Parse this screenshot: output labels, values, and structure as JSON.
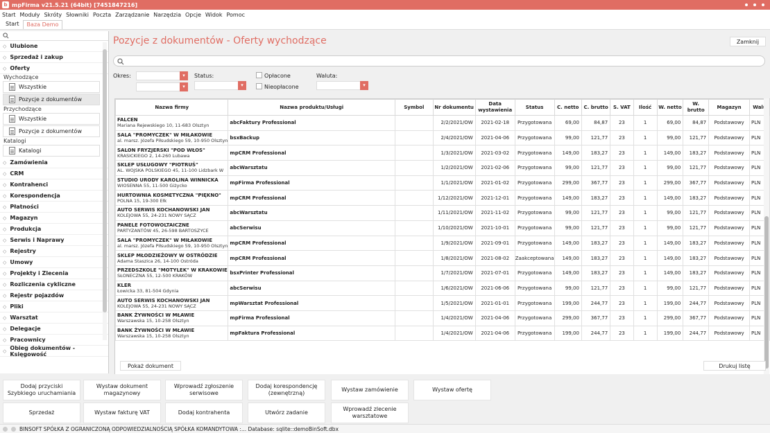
{
  "window": {
    "title": "mpFirma v21.5.21 (64bit) [7451847216]"
  },
  "menu": [
    "Start",
    "Moduły",
    "Skróty",
    "Słowniki",
    "Poczta",
    "Zarządzanie",
    "Narzędzia",
    "Opcje",
    "Widok",
    "Pomoc"
  ],
  "tabs": [
    "Start",
    "Baza Demo"
  ],
  "sidebar": {
    "groups_top": [
      "Ulubione",
      "Sprzedaż i zakup",
      "Oferty"
    ],
    "cat_wychodzace": "Wychodzące",
    "wych_items": [
      "Wszystkie",
      "Pozycje z dokumentów"
    ],
    "cat_przychodzace": "Przychodzące",
    "przych_items": [
      "Wszystkie",
      "Pozycje z dokumentów"
    ],
    "cat_katalogi": "Katalogi",
    "katalogi_items": [
      "Katalogi"
    ],
    "groups_bottom": [
      "Zamówienia",
      "CRM",
      "Kontrahenci",
      "Korespondencja",
      "Płatności",
      "Magazyn",
      "Produkcja",
      "Serwis i Naprawy",
      "Rejestry",
      "Umowy",
      "Projekty i Zlecenia",
      "Rozliczenia cykliczne",
      "Rejestr pojazdów",
      "Pliki",
      "Warsztat",
      "Delegacje",
      "Pracownicy",
      "Obieg dokumentów - Księgowość"
    ]
  },
  "main": {
    "title": "Pozycje z dokumentów - Oferty wychodzące",
    "close_label": "Zamknij",
    "filters": {
      "okres_label": "Okres:",
      "status_label": "Status:",
      "paid_label": "Opłacone",
      "unpaid_label": "Nieopłacone",
      "currency_label": "Waluta:"
    },
    "show_doc_label": "Pokaż dokument",
    "print_label": "Drukuj listę"
  },
  "grid": {
    "columns": [
      "Nazwa firmy",
      "Nazwa produktu/Usługi",
      "Symbol",
      "Nr dokumentu",
      "Data wystawienia",
      "Status",
      "C. netto",
      "C. brutto",
      "S. VAT",
      "Ilość",
      "W. netto",
      "W. brutto",
      "Magazyn",
      "Walu"
    ],
    "rows": [
      {
        "firm": "FALCEN",
        "addr": "Mariana Rejewskiego 10, 11-683 Olsztyn",
        "product": "abcFaktury Professional",
        "symbol": "",
        "doc": "2/2/2021/OW",
        "date": "2021-02-18",
        "status": "Przygotowana",
        "net": "69,00",
        "gross": "84,87",
        "vat": "23",
        "qty": "1",
        "wnet": "69,00",
        "wgross": "84,87",
        "warehouse": "Podstawowy",
        "cur": "PLN"
      },
      {
        "firm": "SALA \"PROMYCZEK\" W MIŁAKOWIE",
        "addr": "al. marsz. Józefa Piłsudskiego 59, 10-950 Olsztyn",
        "product": "bsxBackup",
        "symbol": "",
        "doc": "2/4/2021/OW",
        "date": "2021-04-06",
        "status": "Przygotowana",
        "net": "99,00",
        "gross": "121,77",
        "vat": "23",
        "qty": "1",
        "wnet": "99,00",
        "wgross": "121,77",
        "warehouse": "Podstawowy",
        "cur": "PLN"
      },
      {
        "firm": "SALON FRYZJERSKI \"POD WŁOS\"",
        "addr": "KRASICKIEGO 2, 14-260 Lubawa",
        "product": "mpCRM Professional",
        "symbol": "",
        "doc": "1/3/2021/OW",
        "date": "2021-03-02",
        "status": "Przygotowana",
        "net": "149,00",
        "gross": "183,27",
        "vat": "23",
        "qty": "1",
        "wnet": "149,00",
        "wgross": "183,27",
        "warehouse": "Podstawowy",
        "cur": "PLN"
      },
      {
        "firm": "SKLEP USŁUGOWY \"PIOTRUŚ\"",
        "addr": "AL. WOJSKA POLSKIEGO 45, 11-100 Lidzbark W",
        "product": "abcWarsztatu",
        "symbol": "",
        "doc": "1/2/2021/OW",
        "date": "2021-02-06",
        "status": "Przygotowana",
        "net": "99,00",
        "gross": "121,77",
        "vat": "23",
        "qty": "1",
        "wnet": "99,00",
        "wgross": "121,77",
        "warehouse": "Podstawowy",
        "cur": "PLN"
      },
      {
        "firm": "STUDIO URODY KAROLINA WINNICKA",
        "addr": "WIOSENNA 55, 11-500 Giżycko",
        "product": "mpFirma Professional",
        "symbol": "",
        "doc": "1/1/2021/OW",
        "date": "2021-01-02",
        "status": "Przygotowana",
        "net": "299,00",
        "gross": "367,77",
        "vat": "23",
        "qty": "1",
        "wnet": "299,00",
        "wgross": "367,77",
        "warehouse": "Podstawowy",
        "cur": "PLN"
      },
      {
        "firm": "HURTOWNIA KOSMETYCZNA \"PIĘKNO\"",
        "addr": "POLNA 15, 19-300 Ełk",
        "product": "mpCRM Professional",
        "symbol": "",
        "doc": "1/12/2021/OW",
        "date": "2021-12-01",
        "status": "Przygotowana",
        "net": "149,00",
        "gross": "183,27",
        "vat": "23",
        "qty": "1",
        "wnet": "149,00",
        "wgross": "183,27",
        "warehouse": "Podstawowy",
        "cur": "PLN"
      },
      {
        "firm": "AUTO SERWIS KOCHANOWSKI JAN",
        "addr": "KOLEJOWA 55, 24-231 NOWY SĄCZ",
        "product": "abcWarsztatu",
        "symbol": "",
        "doc": "1/11/2021/OW",
        "date": "2021-11-02",
        "status": "Przygotowana",
        "net": "99,00",
        "gross": "121,77",
        "vat": "23",
        "qty": "1",
        "wnet": "99,00",
        "wgross": "121,77",
        "warehouse": "Podstawowy",
        "cur": "PLN"
      },
      {
        "firm": "PANELE FOTOWOLTAICZNE",
        "addr": "PARTYZANTÓW 45, 26-598 BARTOSZYCE",
        "product": "abcSerwisu",
        "symbol": "",
        "doc": "1/10/2021/OW",
        "date": "2021-10-01",
        "status": "Przygotowana",
        "net": "99,00",
        "gross": "121,77",
        "vat": "23",
        "qty": "1",
        "wnet": "99,00",
        "wgross": "121,77",
        "warehouse": "Podstawowy",
        "cur": "PLN"
      },
      {
        "firm": "SALA \"PROMYCZEK\" W MIŁAKOWIE",
        "addr": "al. marsz. Józefa Piłsudskiego 59, 10-950 Olsztyn",
        "product": "mpCRM Professional",
        "symbol": "",
        "doc": "1/9/2021/OW",
        "date": "2021-09-01",
        "status": "Przygotowana",
        "net": "149,00",
        "gross": "183,27",
        "vat": "23",
        "qty": "1",
        "wnet": "149,00",
        "wgross": "183,27",
        "warehouse": "Podstawowy",
        "cur": "PLN"
      },
      {
        "firm": "SKLEP MŁODZIEŻOWY W OSTRÓDZIE",
        "addr": "Adama Staszica 26, 14-100 Ostróda",
        "product": "mpCRM Professional",
        "symbol": "",
        "doc": "1/8/2021/OW",
        "date": "2021-08-02",
        "status": "Zaakceptowana",
        "net": "149,00",
        "gross": "183,27",
        "vat": "23",
        "qty": "1",
        "wnet": "149,00",
        "wgross": "183,27",
        "warehouse": "Podstawowy",
        "cur": "PLN"
      },
      {
        "firm": "PRZEDSZKOLE \"MOTYLEK\" W KRAKOWIE",
        "addr": "SŁONECZNA 55, 12-500 KRAKÓW",
        "product": "bsxPrinter Professional",
        "symbol": "",
        "doc": "1/7/2021/OW",
        "date": "2021-07-01",
        "status": "Przygotowana",
        "net": "149,00",
        "gross": "183,27",
        "vat": "23",
        "qty": "1",
        "wnet": "149,00",
        "wgross": "183,27",
        "warehouse": "Podstawowy",
        "cur": "PLN"
      },
      {
        "firm": "KLER",
        "addr": "Łowicka 33, 81-504 Gdynia",
        "product": "abcSerwisu",
        "symbol": "",
        "doc": "1/6/2021/OW",
        "date": "2021-06-06",
        "status": "Przygotowana",
        "net": "99,00",
        "gross": "121,77",
        "vat": "23",
        "qty": "1",
        "wnet": "99,00",
        "wgross": "121,77",
        "warehouse": "Podstawowy",
        "cur": "PLN"
      },
      {
        "firm": "AUTO SERWIS KOCHANOWSKI JAN",
        "addr": "KOLEJOWA 55, 24-231 NOWY SĄCZ",
        "product": "mpWarsztat Professional",
        "symbol": "",
        "doc": "1/5/2021/OW",
        "date": "2021-01-01",
        "status": "Przygotowana",
        "net": "199,00",
        "gross": "244,77",
        "vat": "23",
        "qty": "1",
        "wnet": "199,00",
        "wgross": "244,77",
        "warehouse": "Podstawowy",
        "cur": "PLN"
      },
      {
        "firm": "BANK ŻYWNOŚCI W MŁAWIE",
        "addr": "Warszawska 15, 10-258 Olsztyn",
        "product": "mpFirma Professional",
        "symbol": "",
        "doc": "1/4/2021/OW",
        "date": "2021-04-06",
        "status": "Przygotowana",
        "net": "299,00",
        "gross": "367,77",
        "vat": "23",
        "qty": "1",
        "wnet": "299,00",
        "wgross": "367,77",
        "warehouse": "Podstawowy",
        "cur": "PLN"
      },
      {
        "firm": "BANK ŻYWNOŚCI W MŁAWIE",
        "addr": "Warszawska 15, 10-258 Olsztyn",
        "product": "mpFaktura Professional",
        "symbol": "",
        "doc": "1/4/2021/OW",
        "date": "2021-04-06",
        "status": "Przygotowana",
        "net": "199,00",
        "gross": "244,77",
        "vat": "23",
        "qty": "1",
        "wnet": "199,00",
        "wgross": "244,77",
        "warehouse": "Podstawowy",
        "cur": "PLN"
      }
    ]
  },
  "quick_actions": [
    "Dodaj przyciski Szybkiego uruchamiania",
    "Wystaw dokument magazynowy",
    "Wprowadź zgłoszenie serwisowe",
    "Dodaj korespondencję (zewnętrzną)",
    "Wystaw zamówienie",
    "Wystaw ofertę",
    "Sprzedaż",
    "Wystaw fakturę VAT",
    "Dodaj kontrahenta",
    "Utwórz zadanie",
    "Wprowadź zlecenie warsztatowe"
  ],
  "status_bar": "BINSOFT SPÓŁKA Z OGRANICZONĄ ODPOWIEDZIALNOŚCIĄ SPÓŁKA KOMANDYTOWA :... Database: sqlite::demoBinSoft.dbx",
  "colors": {
    "accent": "#e06d63"
  }
}
